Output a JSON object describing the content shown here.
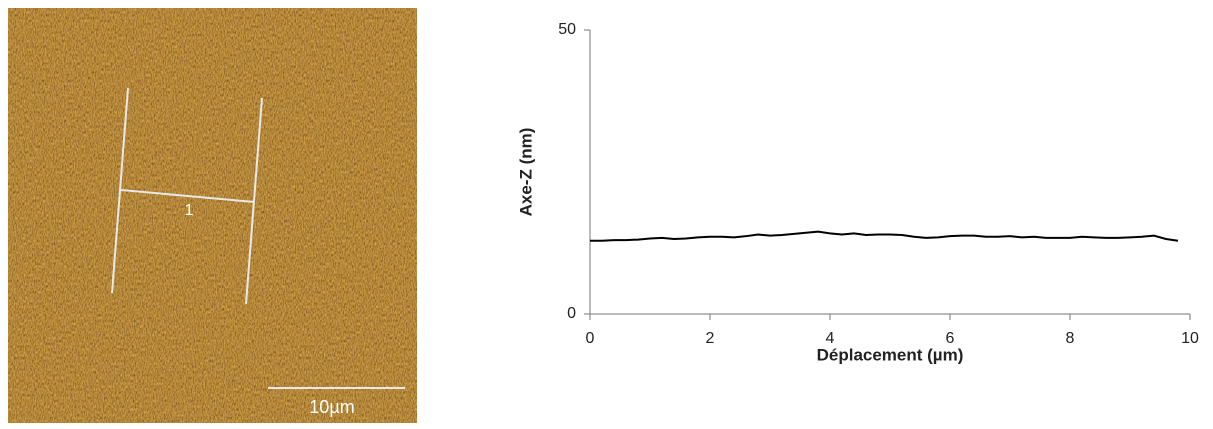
{
  "image": {
    "profile_label": "1",
    "scale_bar": "10µm"
  },
  "chart_data": {
    "type": "line",
    "x_label": "Déplacement (µm)",
    "y_label": "Axe-Z (nm)",
    "x": [
      0,
      0.2,
      0.4,
      0.6,
      0.8,
      1.0,
      1.2,
      1.4,
      1.6,
      1.8,
      2.0,
      2.2,
      2.4,
      2.6,
      2.8,
      3.0,
      3.2,
      3.4,
      3.6,
      3.8,
      4.0,
      4.2,
      4.4,
      4.6,
      4.8,
      5.0,
      5.2,
      5.4,
      5.6,
      5.8,
      6.0,
      6.2,
      6.4,
      6.6,
      6.8,
      7.0,
      7.2,
      7.4,
      7.6,
      7.8,
      8.0,
      8.2,
      8.4,
      8.6,
      8.8,
      9.0,
      9.2,
      9.4,
      9.6,
      9.8
    ],
    "series": [
      {
        "color": "#000000",
        "values": [
          12.9,
          12.9,
          13.0,
          13.0,
          13.1,
          13.3,
          13.4,
          13.2,
          13.3,
          13.5,
          13.6,
          13.6,
          13.5,
          13.7,
          14.0,
          13.8,
          13.9,
          14.1,
          14.3,
          14.5,
          14.2,
          14.0,
          14.2,
          13.9,
          14.0,
          14.0,
          13.9,
          13.6,
          13.4,
          13.5,
          13.7,
          13.8,
          13.8,
          13.6,
          13.6,
          13.7,
          13.5,
          13.6,
          13.4,
          13.4,
          13.4,
          13.6,
          13.5,
          13.4,
          13.4,
          13.5,
          13.6,
          13.8,
          13.2,
          12.9
        ]
      }
    ],
    "xlim": [
      0,
      10
    ],
    "xticks": [
      0,
      2,
      4,
      6,
      8,
      10
    ],
    "ylim": [
      0,
      50
    ],
    "yticks": [
      0,
      50
    ]
  }
}
